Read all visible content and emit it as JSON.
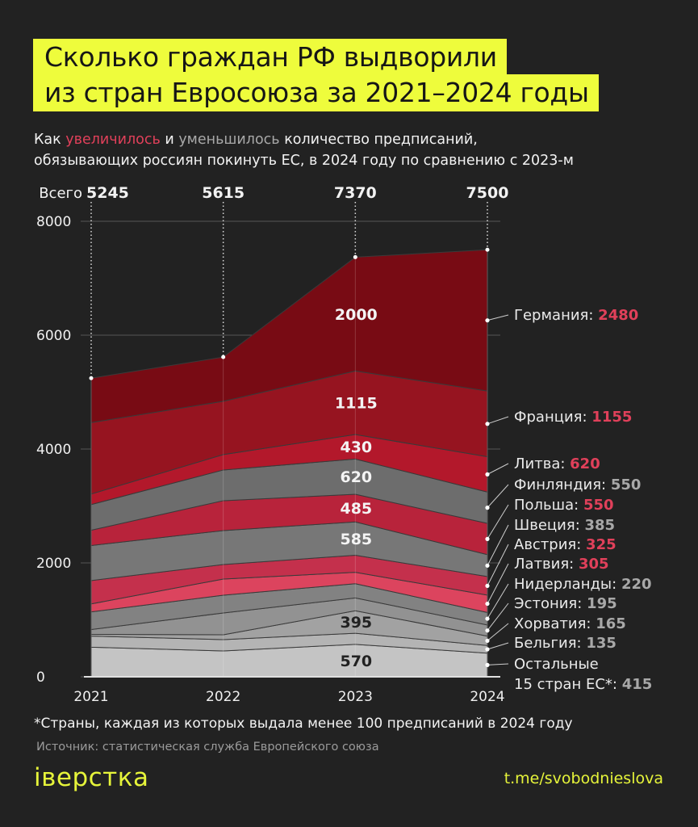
{
  "title": {
    "line1": "Сколько граждан РФ выдворили",
    "line2": "из стран Евросоюза за 2021–2024 годы"
  },
  "subtitle": {
    "p1": "Как ",
    "up": "увеличилось",
    "p2": " и ",
    "down": "уменьшилось",
    "p3": " количество предписаний,",
    "line2": "обязывающих россиян покинуть ЕС, в 2024 году по сравнению с 2023-м"
  },
  "footnote": "*Страны, каждая из которых выдала менее 100 предписаний в 2024 году",
  "source": "Источник: статистическая служба Европейского союза",
  "logo": "іверстка",
  "logo_text": "вёрстка",
  "link": "t.me/svobodnieslova",
  "colors": {
    "background": "#222222",
    "title_bg": "#eefc3c",
    "increase": "#e0405a",
    "decrease": "#a8a8a8",
    "brand": "#e6f43a"
  },
  "chart_data": {
    "type": "area",
    "stacked": true,
    "x": [
      "2021",
      "2022",
      "2023",
      "2024"
    ],
    "ylim": [
      0,
      8000
    ],
    "yticks": [
      "0",
      "2000",
      "4000",
      "6000",
      "8000"
    ],
    "grid": true,
    "totals_label": "Всего",
    "totals": [
      5245,
      5615,
      7370,
      7500
    ],
    "total_colors": [
      "#f2f2f2",
      "#f2f2f2",
      "#f2f2f2",
      "#e0405a"
    ],
    "series": [
      {
        "name": "Остальные 15 стран ЕС*",
        "values": [
          520,
          454,
          570,
          415
        ],
        "color": "#c4c4c4",
        "trend": "down"
      },
      {
        "name": "Бельгия",
        "values": [
          195,
          199,
          195,
          135
        ],
        "color": "#b4b4b4",
        "trend": "down"
      },
      {
        "name": "Хорватия",
        "values": [
          30,
          85,
          395,
          165
        ],
        "color": "#a2a2a2",
        "trend": "down"
      },
      {
        "name": "Эстония",
        "values": [
          85,
          383,
          225,
          195
        ],
        "color": "#929292",
        "trend": "down"
      },
      {
        "name": "Нидерланды",
        "values": [
          310,
          312,
          250,
          220
        ],
        "color": "#828282",
        "trend": "down"
      },
      {
        "name": "Латвия",
        "values": [
          140,
          284,
          200,
          305
        ],
        "color": "#dc445e",
        "trend": "up"
      },
      {
        "name": "Австрия",
        "values": [
          410,
          255,
          300,
          325
        ],
        "color": "#c4304c",
        "trend": "up"
      },
      {
        "name": "Швеция",
        "values": [
          615,
          596,
          585,
          385
        ],
        "color": "#777777",
        "trend": "down"
      },
      {
        "name": "Польша",
        "values": [
          270,
          525,
          485,
          550
        ],
        "color": "#b8233b",
        "trend": "up"
      },
      {
        "name": "Финляндия",
        "values": [
          450,
          539,
          620,
          550
        ],
        "color": "#6d6d6d",
        "trend": "down"
      },
      {
        "name": "Литва",
        "values": [
          185,
          270,
          430,
          620
        ],
        "color": "#b3182b",
        "trend": "up"
      },
      {
        "name": "Франция",
        "values": [
          1255,
          936,
          1115,
          1155
        ],
        "color": "#961420",
        "trend": "up"
      },
      {
        "name": "Германия",
        "values": [
          780,
          777,
          2000,
          2480
        ],
        "color": "#780b14",
        "trend": "up"
      }
    ],
    "labeled_2023": [
      "Германия",
      "Франция",
      "Литва",
      "Финляндия",
      "Польша",
      "Швеция",
      "Хорватия",
      "Остальные 15 стран ЕС*"
    ]
  }
}
